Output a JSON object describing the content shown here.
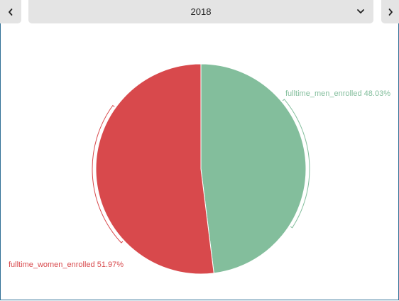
{
  "controls": {
    "prev_icon": "chevron-left-icon",
    "next_icon": "chevron-right-icon",
    "dropdown_icon": "chevron-down-icon",
    "year_selected": "2018"
  },
  "chart_data": {
    "type": "pie",
    "categories": [
      "fulltime_men_enrolled",
      "fulltime_women_enrolled"
    ],
    "values": [
      48.03,
      51.97
    ],
    "labels": [
      "fulltime_men_enrolled 48.03%",
      "fulltime_women_enrolled 51.97%"
    ],
    "colors": [
      "#83be9c",
      "#d8494c"
    ],
    "legend": "none",
    "title": ""
  }
}
